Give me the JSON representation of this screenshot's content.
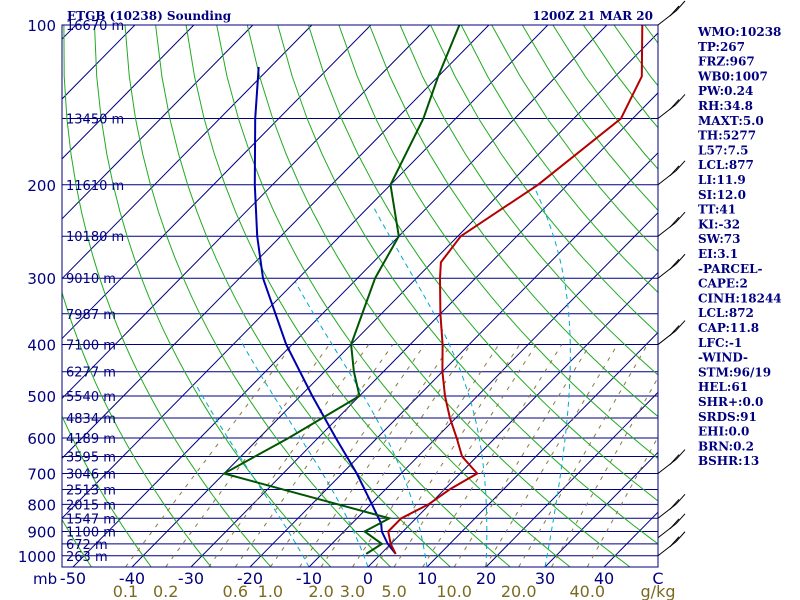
{
  "header": {
    "station": "ETGB (10238) Sounding",
    "time": "1200Z 21 MAR 20"
  },
  "chart_data": {
    "type": "skew-t log-p sounding",
    "pressure_levels": [
      100,
      200,
      300,
      400,
      500,
      600,
      700,
      800,
      900,
      1000
    ],
    "pressure_label": "mb",
    "heights": [
      {
        "p": 100,
        "h": "16670 m"
      },
      {
        "p": 150,
        "h": "13450 m"
      },
      {
        "p": 200,
        "h": "11610 m"
      },
      {
        "p": 250,
        "h": "10180 m"
      },
      {
        "p": 300,
        "h": "9010 m"
      },
      {
        "p": 350,
        "h": "7987 m"
      },
      {
        "p": 400,
        "h": "7100 m"
      },
      {
        "p": 450,
        "h": "6277 m"
      },
      {
        "p": 500,
        "h": "5540 m"
      },
      {
        "p": 550,
        "h": "4834 m"
      },
      {
        "p": 600,
        "h": "4189 m"
      },
      {
        "p": 650,
        "h": "3595 m"
      },
      {
        "p": 700,
        "h": "3046 m"
      },
      {
        "p": 750,
        "h": "2513 m"
      },
      {
        "p": 800,
        "h": "2015 m"
      },
      {
        "p": 850,
        "h": "1547 m"
      },
      {
        "p": 900,
        "h": "1100 m"
      },
      {
        "p": 950,
        "h": "672 m"
      },
      {
        "p": 1000,
        "h": "263 m"
      }
    ],
    "temp_ticks": [
      "-50",
      "-40",
      "-30",
      "-20",
      "-10",
      "0",
      "10",
      "20",
      "30",
      "40",
      "C"
    ],
    "mixing_ratio_ticks": [
      "0.1",
      "0.2",
      "0.6",
      "1.0",
      "2.0",
      "3.0",
      "5.0",
      "10.0",
      "20.0",
      "40.0",
      "g/kg"
    ],
    "temperature": [
      {
        "p": 992,
        "t": 2.5
      },
      {
        "p": 950,
        "t": 0.0
      },
      {
        "p": 900,
        "t": -2.5
      },
      {
        "p": 850,
        "t": -2.5
      },
      {
        "p": 800,
        "t": -0.2
      },
      {
        "p": 750,
        "t": 0.9
      },
      {
        "p": 700,
        "t": 2.9
      },
      {
        "p": 650,
        "t": -2.5
      },
      {
        "p": 600,
        "t": -6.5
      },
      {
        "p": 550,
        "t": -11.0
      },
      {
        "p": 500,
        "t": -15.5
      },
      {
        "p": 450,
        "t": -20.0
      },
      {
        "p": 400,
        "t": -24.5
      },
      {
        "p": 350,
        "t": -30.0
      },
      {
        "p": 300,
        "t": -36.0
      },
      {
        "p": 280,
        "t": -38.5
      },
      {
        "p": 250,
        "t": -39.5
      },
      {
        "p": 200,
        "t": -35.0
      },
      {
        "p": 150,
        "t": -32.0
      },
      {
        "p": 125,
        "t": -35.5
      },
      {
        "p": 100,
        "t": -44.0
      }
    ],
    "dewpoint": [
      {
        "p": 992,
        "t": -2.5
      },
      {
        "p": 950,
        "t": -1.5
      },
      {
        "p": 900,
        "t": -6.5
      },
      {
        "p": 850,
        "t": -4.5
      },
      {
        "p": 700,
        "t": -40.0
      },
      {
        "p": 600,
        "t": -35.0
      },
      {
        "p": 500,
        "t": -30.0
      },
      {
        "p": 450,
        "t": -35.0
      },
      {
        "p": 400,
        "t": -40.0
      },
      {
        "p": 300,
        "t": -47.0
      },
      {
        "p": 250,
        "t": -50.0
      },
      {
        "p": 200,
        "t": -60.0
      },
      {
        "p": 150,
        "t": -65.5
      },
      {
        "p": 125,
        "t": -70.0
      },
      {
        "p": 100,
        "t": -75.0
      }
    ],
    "parcel": [
      {
        "p": 992,
        "t": 2.5
      },
      {
        "p": 950,
        "t": -0.5
      },
      {
        "p": 900,
        "t": -3.6
      },
      {
        "p": 870,
        "t": -5.0
      },
      {
        "p": 800,
        "t": -9.8
      },
      {
        "p": 700,
        "t": -17.5
      },
      {
        "p": 600,
        "t": -27.0
      },
      {
        "p": 500,
        "t": -38.0
      },
      {
        "p": 400,
        "t": -51.0
      },
      {
        "p": 300,
        "t": -66.0
      },
      {
        "p": 250,
        "t": -74.0
      },
      {
        "p": 200,
        "t": -83.0
      },
      {
        "p": 150,
        "t": -94.0
      },
      {
        "p": 120,
        "t": -102.0
      }
    ],
    "wind_levels": [
      1000,
      925,
      850,
      700,
      400,
      300,
      250,
      200,
      150,
      100
    ]
  },
  "indices": [
    "WMO:10238",
    "TP:267",
    "FRZ:967",
    "WB0:1007",
    "PW:0.24",
    "RH:34.8",
    "MAXT:5.0",
    "TH:5277",
    "L57:7.5",
    "LCL:877",
    "LI:11.9",
    "SI:12.0",
    "TT:41",
    "KI:-32",
    "SW:73",
    "EI:3.1",
    "-PARCEL-",
    "CAPE:2",
    "CINH:18244",
    "LCL:872",
    "CAP:11.8",
    "LFC:-1",
    "-WIND-",
    "STM:96/19",
    "HEL:61",
    "SHR+:0.0",
    "SRDS:91",
    "EHI:0.0",
    "BRN:0.2",
    "BSHR:13"
  ],
  "colors": {
    "isobar": "#000080",
    "isotherm": "#000080",
    "dry_adiabat": "#22aa22",
    "moist_adiabat": "#00aacc",
    "mixing_ratio": "#8a7a40",
    "temperature": "#b40000",
    "dewpoint": "#005500",
    "parcel": "#0000aa",
    "wind": "#000000"
  }
}
